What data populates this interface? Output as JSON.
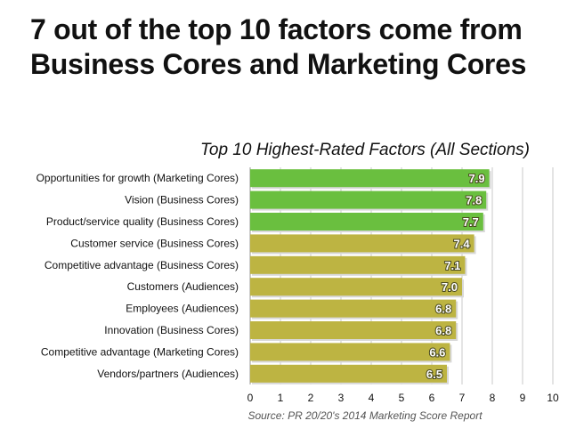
{
  "headline": {
    "line1": "7 out of the top 10 factors come from",
    "line2": "Business Cores and Marketing Cores"
  },
  "source": "Source: PR 20/20's 2014 Marketing Score Report",
  "colors": {
    "green": "#6abf3f",
    "olive": "#bdb442",
    "label_text": "#ffffff",
    "grid": "#c8c8c8"
  },
  "chart_data": {
    "type": "bar",
    "orientation": "horizontal",
    "title": "Top 10 Highest-Rated Factors (All Sections)",
    "categories": [
      "Opportunities for growth (Marketing Cores)",
      "Vision (Business Cores)",
      "Product/service quality (Business Cores)",
      "Customer service (Business Cores)",
      "Competitive advantage (Business Cores)",
      "Customers (Audiences)",
      "Employees (Audiences)",
      "Innovation (Business Cores)",
      "Competitive advantage (Marketing Cores)",
      "Vendors/partners (Audiences)"
    ],
    "values": [
      7.9,
      7.8,
      7.7,
      7.4,
      7.1,
      7.0,
      6.8,
      6.8,
      6.6,
      6.5
    ],
    "data_labels": [
      "7.9",
      "7.8",
      "7.7",
      "7.4",
      "7.1",
      "7.0",
      "6.8",
      "6.8",
      "6.6",
      "6.5"
    ],
    "bar_colors": [
      "green",
      "green",
      "green",
      "olive",
      "olive",
      "olive",
      "olive",
      "olive",
      "olive",
      "olive"
    ],
    "xlim": [
      0,
      10
    ],
    "xticks": [
      "0",
      "1",
      "2",
      "3",
      "4",
      "5",
      "6",
      "7",
      "8",
      "9",
      "10"
    ],
    "grid": true,
    "legend": false
  }
}
